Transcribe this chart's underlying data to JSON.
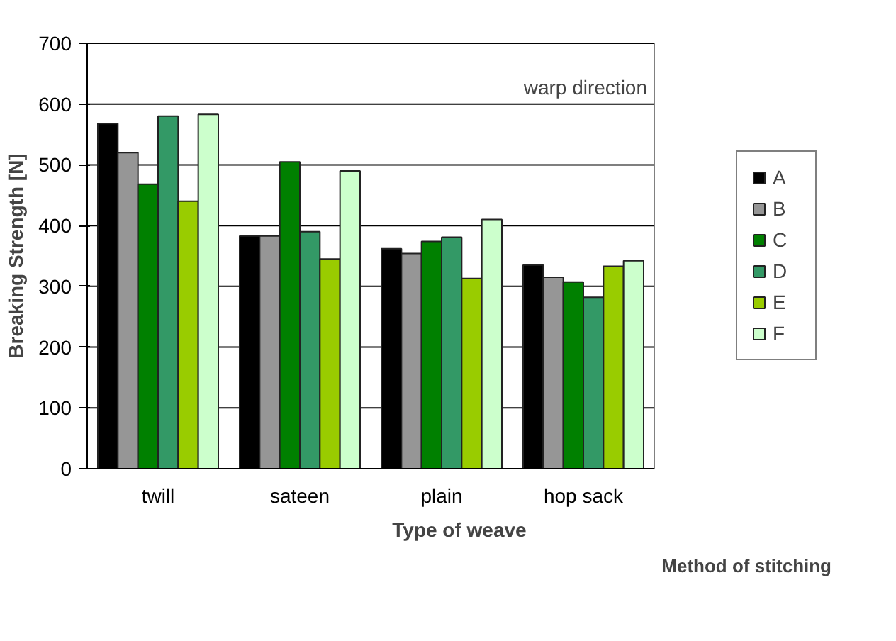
{
  "chart_data": {
    "type": "bar",
    "xlabel": "Type of weave",
    "ylabel": "Breaking Strength [N]",
    "legend_title": "Method of stitching",
    "annotations": [
      "warp direction"
    ],
    "categories": [
      "twill",
      "sateen",
      "plain",
      "hop sack"
    ],
    "series": [
      {
        "name": "A",
        "color": "#000000",
        "values": [
          568,
          383,
          362,
          335
        ]
      },
      {
        "name": "B",
        "color": "#969696",
        "values": [
          520,
          383,
          354,
          315
        ]
      },
      {
        "name": "C",
        "color": "#008000",
        "values": [
          468,
          505,
          374,
          307
        ]
      },
      {
        "name": "D",
        "color": "#339966",
        "values": [
          580,
          390,
          381,
          282
        ]
      },
      {
        "name": "E",
        "color": "#99cc00",
        "values": [
          440,
          345,
          313,
          333
        ]
      },
      {
        "name": "F",
        "color": "#ccffcc",
        "values": [
          583,
          490,
          410,
          342
        ]
      }
    ],
    "ylim": [
      0,
      700
    ],
    "yticks": [
      0,
      100,
      200,
      300,
      400,
      500,
      600,
      700
    ],
    "grid": "y",
    "legend": "right"
  }
}
